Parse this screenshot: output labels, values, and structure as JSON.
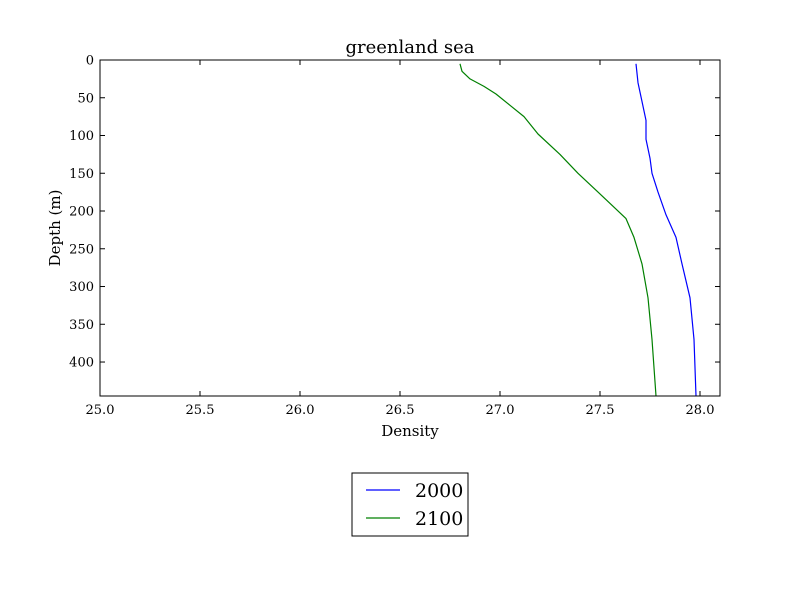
{
  "chart_data": {
    "type": "line",
    "title": "greenland sea",
    "xlabel": "Density",
    "ylabel": "Depth (m)",
    "xlim": [
      25.0,
      28.1
    ],
    "ylim": [
      445,
      0
    ],
    "y_inverted": true,
    "xticks": [
      "25.0",
      "25.5",
      "26.0",
      "26.5",
      "27.0",
      "27.5",
      "28.0"
    ],
    "xtick_values": [
      25.0,
      25.5,
      26.0,
      26.5,
      27.0,
      27.5,
      28.0
    ],
    "yticks": [
      "0",
      "50",
      "100",
      "150",
      "200",
      "250",
      "300",
      "350",
      "400"
    ],
    "ytick_values": [
      0,
      50,
      100,
      150,
      200,
      250,
      300,
      350,
      400
    ],
    "grid": false,
    "legend_position": "below-center",
    "series": [
      {
        "name": "2000",
        "color": "#0000ff",
        "points": [
          [
            27.68,
            5
          ],
          [
            27.69,
            30
          ],
          [
            27.71,
            55
          ],
          [
            27.73,
            80
          ],
          [
            27.73,
            105
          ],
          [
            27.75,
            130
          ],
          [
            27.76,
            150
          ],
          [
            27.79,
            175
          ],
          [
            27.83,
            205
          ],
          [
            27.88,
            235
          ],
          [
            27.91,
            270
          ],
          [
            27.95,
            315
          ],
          [
            27.97,
            370
          ],
          [
            27.98,
            445
          ]
        ]
      },
      {
        "name": "2100",
        "color": "#008000",
        "points": [
          [
            26.8,
            5
          ],
          [
            26.81,
            15
          ],
          [
            26.85,
            25
          ],
          [
            26.92,
            35
          ],
          [
            26.98,
            45
          ],
          [
            27.05,
            60
          ],
          [
            27.12,
            75
          ],
          [
            27.19,
            98
          ],
          [
            27.3,
            125
          ],
          [
            27.39,
            150
          ],
          [
            27.49,
            175
          ],
          [
            27.57,
            195
          ],
          [
            27.63,
            210
          ],
          [
            27.67,
            235
          ],
          [
            27.71,
            270
          ],
          [
            27.74,
            315
          ],
          [
            27.76,
            370
          ],
          [
            27.78,
            445
          ]
        ]
      }
    ]
  }
}
